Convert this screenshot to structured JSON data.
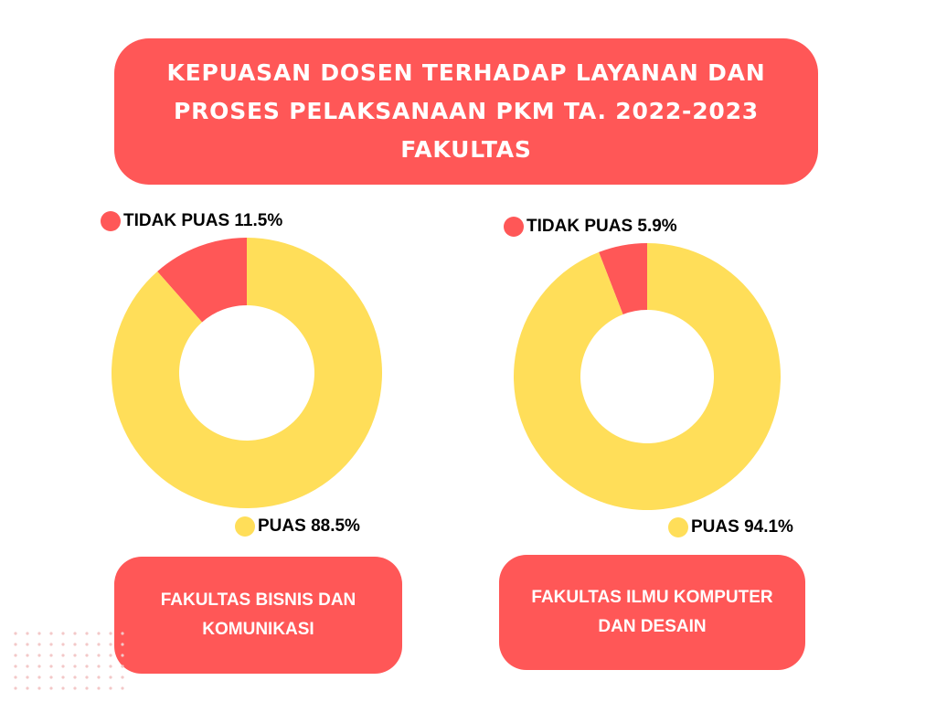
{
  "title": {
    "line1": "KEPUASAN DOSEN TERHADAP LAYANAN DAN",
    "line2": "PROSES PELAKSANAAN PKM TA. 2022-2023",
    "line3": "FAKULTAS"
  },
  "colors": {
    "puas": "#ffde59",
    "tidak_puas": "#ff5757",
    "box": "#ff5757"
  },
  "chart_data": [
    {
      "type": "pie",
      "categories": [
        "TIDAK PUAS",
        "PUAS"
      ],
      "values": [
        11.5,
        88.5
      ],
      "labels": [
        "TIDAK PUAS 11.5%",
        "PUAS 88.5%"
      ],
      "title": "FAKULTAS BISNIS DAN KOMUNIKASI",
      "title_lines": [
        "FAKULTAS BISNIS DAN",
        "KOMUNIKASI"
      ],
      "donut": true
    },
    {
      "type": "pie",
      "categories": [
        "TIDAK PUAS",
        "PUAS"
      ],
      "values": [
        5.9,
        94.1
      ],
      "labels": [
        "TIDAK PUAS 5.9%",
        "PUAS 94.1%"
      ],
      "title": "FAKULTAS ILMU KOMPUTER DAN DESAIN",
      "title_lines": [
        "FAKULTAS ILMU KOMPUTER",
        "DAN DESAIN"
      ],
      "donut": true
    }
  ]
}
